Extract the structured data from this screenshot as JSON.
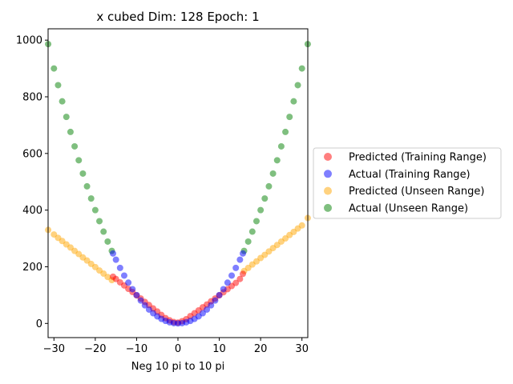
{
  "chart_data": {
    "type": "scatter",
    "title": "x cubed Dim: 128 Epoch: 1",
    "xlabel": "Neg 10 pi to 10 pi",
    "ylabel": "",
    "xlim": [
      -31.4159,
      31.4159
    ],
    "ylim": [
      -50,
      1040
    ],
    "xticks": [
      -30,
      -20,
      -10,
      0,
      10,
      20,
      30
    ],
    "yticks": [
      0,
      200,
      400,
      600,
      800,
      1000
    ],
    "grid": false,
    "legend_placement": "center-right outside",
    "series": [
      {
        "name": "Predicted (Training Range)",
        "color": "#ff0000",
        "alpha": 0.5,
        "x": [
          -15.71,
          -15,
          -14,
          -13,
          -12,
          -11,
          -10,
          -9,
          -8,
          -7,
          -6,
          -5,
          -4,
          -3,
          -2,
          -1,
          0,
          1,
          2,
          3,
          4,
          5,
          6,
          7,
          8,
          9,
          10,
          11,
          12,
          13,
          14,
          15,
          15.71
        ],
        "y": [
          165,
          157,
          145,
          134,
          122,
          111,
          99,
          88,
          76,
          65,
          53,
          42,
          30,
          19,
          11,
          5,
          3,
          8,
          15,
          26,
          36,
          46,
          57,
          67,
          78,
          88,
          99,
          110,
          121,
          132,
          143,
          157,
          175
        ]
      },
      {
        "name": "Actual (Training Range)",
        "color": "#0000ff",
        "alpha": 0.5,
        "x": [
          -15.71,
          -15,
          -14,
          -13,
          -12,
          -11,
          -10,
          -9,
          -8,
          -7,
          -6,
          -5,
          -4,
          -3,
          -2,
          -1,
          0,
          1,
          2,
          3,
          4,
          5,
          6,
          7,
          8,
          9,
          10,
          11,
          12,
          13,
          14,
          15,
          15.71
        ],
        "y": [
          247,
          225,
          196,
          169,
          144,
          121,
          100,
          81,
          64,
          49,
          36,
          25,
          16,
          9,
          4,
          1,
          0,
          1,
          4,
          9,
          16,
          25,
          36,
          49,
          64,
          81,
          100,
          121,
          144,
          169,
          196,
          225,
          247
        ]
      },
      {
        "name": "Predicted (Unseen Range)",
        "color": "#ffa500",
        "alpha": 0.5,
        "x": [
          -31.4,
          -30,
          -29,
          -28,
          -27,
          -26,
          -25,
          -24,
          -23,
          -22,
          -21,
          -20,
          -19,
          -18,
          -17,
          -16,
          16,
          17,
          18,
          19,
          20,
          21,
          22,
          23,
          24,
          25,
          26,
          27,
          28,
          29,
          30,
          31.4
        ],
        "y": [
          330,
          314,
          302,
          291,
          279,
          268,
          256,
          245,
          233,
          222,
          210,
          199,
          187,
          176,
          164,
          153,
          185,
          196,
          208,
          219,
          231,
          242,
          254,
          266,
          277,
          289,
          300,
          312,
          323,
          335,
          346,
          372
        ]
      },
      {
        "name": "Actual (Unseen Range)",
        "color": "#008000",
        "alpha": 0.5,
        "x": [
          -31.4,
          -30,
          -29,
          -28,
          -27,
          -26,
          -25,
          -24,
          -23,
          -22,
          -21,
          -20,
          -19,
          -18,
          -17,
          -16,
          16,
          17,
          18,
          19,
          20,
          21,
          22,
          23,
          24,
          25,
          26,
          27,
          28,
          29,
          30,
          31.4
        ],
        "y": [
          986,
          900,
          841,
          784,
          729,
          676,
          625,
          576,
          529,
          484,
          441,
          400,
          361,
          324,
          289,
          256,
          256,
          289,
          324,
          361,
          400,
          441,
          484,
          529,
          576,
          625,
          676,
          729,
          784,
          841,
          900,
          986
        ]
      }
    ]
  }
}
